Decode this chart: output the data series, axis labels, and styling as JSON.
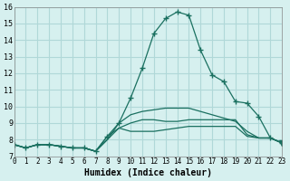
{
  "xlabel": "Humidex (Indice chaleur)",
  "ylabel": "",
  "xlim": [
    0,
    23
  ],
  "ylim": [
    7,
    16
  ],
  "xticks": [
    0,
    1,
    2,
    3,
    4,
    5,
    6,
    7,
    8,
    9,
    10,
    11,
    12,
    13,
    14,
    15,
    16,
    17,
    18,
    19,
    20,
    21,
    22,
    23
  ],
  "yticks": [
    7,
    8,
    9,
    10,
    11,
    12,
    13,
    14,
    15,
    16
  ],
  "bg_color": "#d6f0ef",
  "grid_color": "#b0d8d8",
  "line_color": "#1a7060",
  "lines": [
    [
      7.7,
      7.5,
      7.7,
      7.7,
      7.6,
      7.5,
      7.5,
      7.3,
      8.2,
      9.0,
      10.5,
      12.3,
      14.4,
      15.3,
      15.7,
      15.5,
      13.4,
      11.9,
      11.5,
      10.3,
      10.2,
      9.4,
      8.1,
      7.8
    ],
    [
      7.7,
      7.5,
      7.7,
      7.7,
      7.6,
      7.5,
      7.5,
      7.3,
      8.0,
      8.7,
      8.5,
      8.5,
      8.5,
      8.6,
      8.7,
      8.8,
      8.8,
      8.8,
      8.8,
      8.8,
      8.2,
      8.1,
      8.1,
      7.8
    ],
    [
      7.7,
      7.5,
      7.7,
      7.7,
      7.6,
      7.5,
      7.5,
      7.3,
      8.2,
      8.7,
      9.0,
      9.2,
      9.2,
      9.1,
      9.1,
      9.2,
      9.2,
      9.2,
      9.2,
      9.2,
      8.3,
      8.1,
      8.1,
      7.8
    ],
    [
      7.7,
      7.5,
      7.7,
      7.7,
      7.6,
      7.5,
      7.5,
      7.3,
      8.0,
      9.0,
      9.5,
      9.7,
      9.8,
      9.9,
      9.9,
      9.9,
      9.7,
      9.5,
      9.3,
      9.1,
      8.5,
      8.1,
      8.1,
      7.8
    ]
  ]
}
